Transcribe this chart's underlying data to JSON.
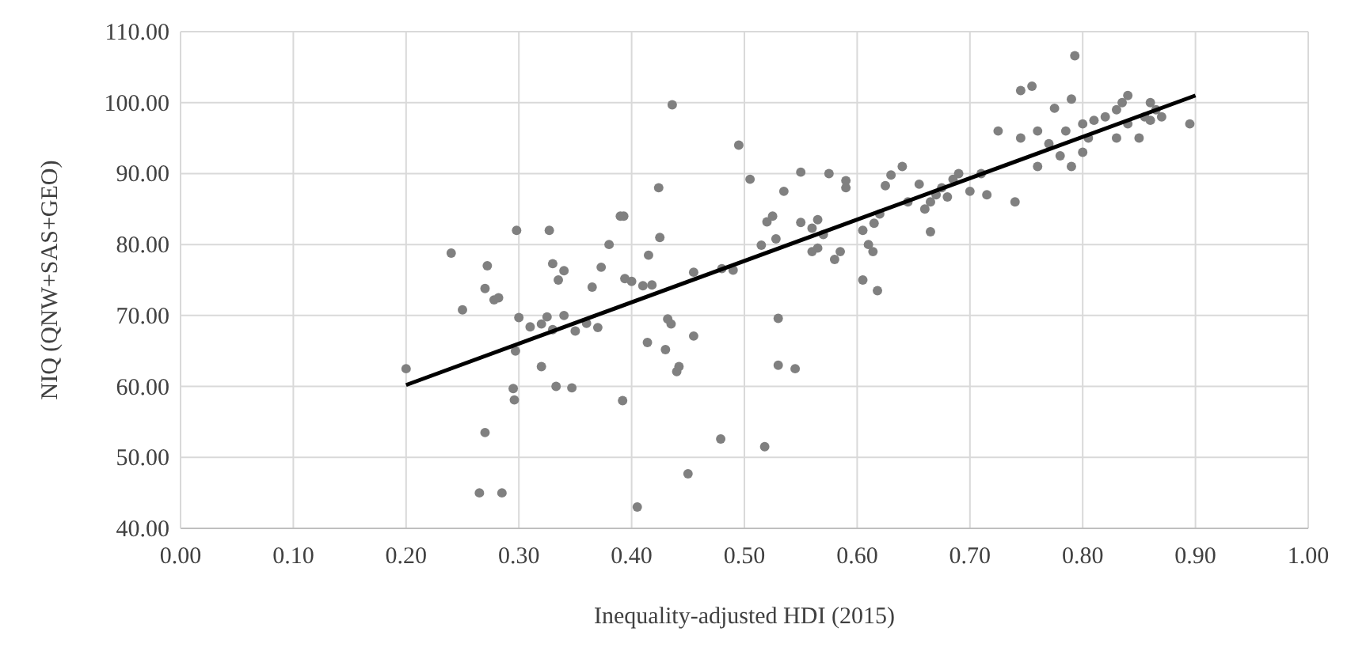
{
  "chart_data": {
    "type": "scatter",
    "xlabel": "Inequality-adjusted HDI (2015)",
    "ylabel": "NIQ (QNW+SAS+GEO)",
    "xlim": [
      0,
      1
    ],
    "ylim": [
      40,
      110
    ],
    "xticks": [
      {
        "value": 0,
        "label": "0.00"
      },
      {
        "value": 0.1,
        "label": "0.10"
      },
      {
        "value": 0.2,
        "label": "0.20"
      },
      {
        "value": 0.3,
        "label": "0.30"
      },
      {
        "value": 0.4,
        "label": "0.40"
      },
      {
        "value": 0.5,
        "label": "0.50"
      },
      {
        "value": 0.6,
        "label": "0.60"
      },
      {
        "value": 0.7,
        "label": "0.70"
      },
      {
        "value": 0.8,
        "label": "0.80"
      },
      {
        "value": 0.9,
        "label": "0.90"
      },
      {
        "value": 1,
        "label": "1.00"
      }
    ],
    "yticks": [
      {
        "value": 40,
        "label": "40.00"
      },
      {
        "value": 50,
        "label": "50.00"
      },
      {
        "value": 60,
        "label": "60.00"
      },
      {
        "value": 70,
        "label": "70.00"
      },
      {
        "value": 80,
        "label": "80.00"
      },
      {
        "value": 90,
        "label": "90.00"
      },
      {
        "value": 100,
        "label": "100.00"
      },
      {
        "value": 110,
        "label": "110.00"
      }
    ],
    "grid": true,
    "series": [
      {
        "marker": "circle",
        "color": "#808080",
        "x": [
          0.2,
          0.24,
          0.25,
          0.265,
          0.27,
          0.272,
          0.27,
          0.278,
          0.282,
          0.285,
          0.295,
          0.296,
          0.297,
          0.298,
          0.3,
          0.31,
          0.32,
          0.32,
          0.325,
          0.327,
          0.33,
          0.33,
          0.333,
          0.335,
          0.34,
          0.34,
          0.347,
          0.35,
          0.36,
          0.365,
          0.37,
          0.373,
          0.38,
          0.39,
          0.392,
          0.393,
          0.394,
          0.4,
          0.405,
          0.41,
          0.415,
          0.414,
          0.418,
          0.424,
          0.425,
          0.43,
          0.432,
          0.435,
          0.436,
          0.44,
          0.442,
          0.45,
          0.455,
          0.455,
          0.48,
          0.479,
          0.49,
          0.495,
          0.505,
          0.515,
          0.518,
          0.52,
          0.525,
          0.53,
          0.528,
          0.53,
          0.535,
          0.545,
          0.55,
          0.55,
          0.56,
          0.56,
          0.565,
          0.565,
          0.57,
          0.575,
          0.58,
          0.585,
          0.59,
          0.59,
          0.605,
          0.605,
          0.61,
          0.614,
          0.618,
          0.62,
          0.615,
          0.625,
          0.63,
          0.64,
          0.645,
          0.655,
          0.66,
          0.665,
          0.67,
          0.675,
          0.665,
          0.68,
          0.685,
          0.69,
          0.7,
          0.71,
          0.715,
          0.725,
          0.74,
          0.745,
          0.745,
          0.755,
          0.76,
          0.76,
          0.77,
          0.775,
          0.78,
          0.79,
          0.785,
          0.79,
          0.793,
          0.8,
          0.8,
          0.805,
          0.81,
          0.82,
          0.83,
          0.83,
          0.835,
          0.84,
          0.84,
          0.85,
          0.855,
          0.86,
          0.86,
          0.865,
          0.87,
          0.895
        ],
        "values": [
          62.5,
          78.8,
          70.8,
          45,
          73.8,
          77,
          53.5,
          72.2,
          72.5,
          45,
          59.7,
          58.1,
          65,
          82,
          69.7,
          68.4,
          68.8,
          62.8,
          69.8,
          82,
          68,
          77.3,
          60,
          75,
          76.3,
          70,
          59.8,
          67.8,
          68.9,
          74,
          68.3,
          76.8,
          80,
          84,
          58,
          84,
          75.2,
          74.8,
          43,
          74.2,
          78.5,
          66.2,
          74.3,
          88,
          81,
          65.2,
          69.5,
          68.8,
          99.7,
          62.1,
          62.8,
          47.7,
          67.1,
          76.1,
          76.6,
          52.6,
          76.4,
          94,
          89.2,
          79.9,
          51.5,
          83.2,
          84,
          69.6,
          80.8,
          63,
          87.5,
          62.5,
          90.2,
          83.1,
          82.3,
          79,
          79.5,
          83.5,
          81.4,
          90,
          77.9,
          79,
          89,
          88,
          82,
          75,
          80,
          79,
          73.5,
          84.3,
          83,
          88.3,
          89.8,
          91,
          86,
          88.5,
          85,
          86,
          87,
          88,
          81.8,
          86.7,
          89.2,
          90,
          87.5,
          90,
          87,
          96,
          86,
          95,
          101.7,
          102.3,
          91,
          96,
          94.2,
          99.2,
          92.5,
          91,
          96,
          100.5,
          106.6,
          97,
          93,
          95,
          97.5,
          98,
          99,
          95,
          100,
          101,
          97,
          95,
          98,
          100,
          97.5,
          99,
          98,
          97
        ]
      },
      {
        "type": "line",
        "color": "#000000",
        "x": [
          0.2,
          0.9
        ],
        "values": [
          60.2,
          101
        ]
      }
    ]
  }
}
